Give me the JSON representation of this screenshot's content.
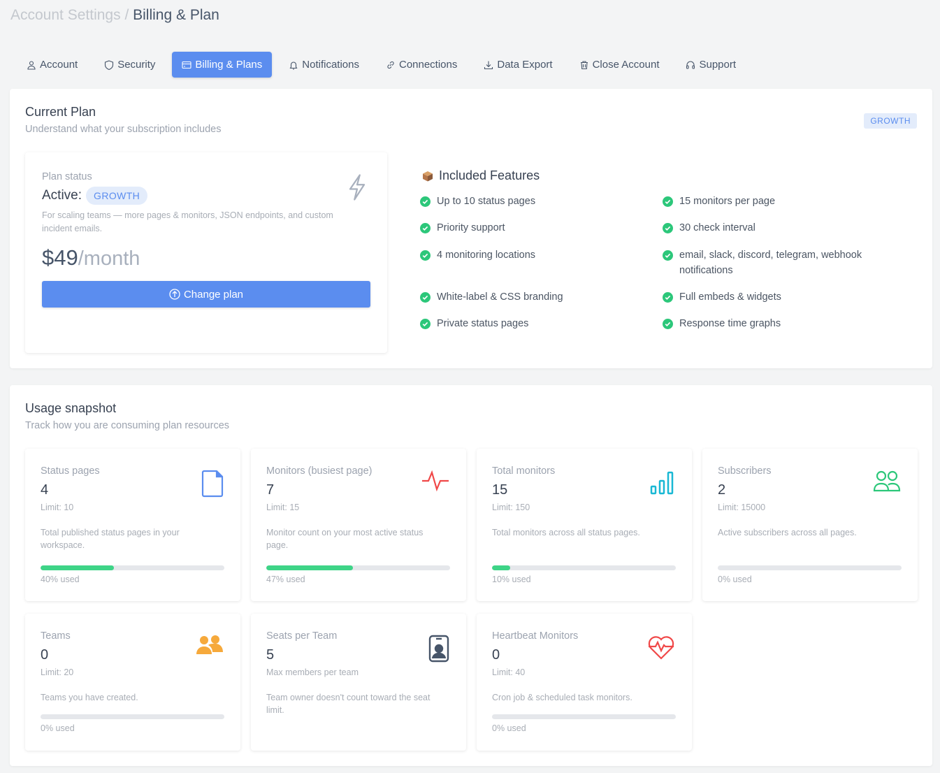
{
  "breadcrumb": {
    "parent": "Account Settings",
    "separator": "/",
    "current": "Billing & Plan"
  },
  "tabs": [
    {
      "label": "Account",
      "icon": "user-icon"
    },
    {
      "label": "Security",
      "icon": "shield-icon"
    },
    {
      "label": "Billing & Plans",
      "icon": "credit-card-icon",
      "active": true
    },
    {
      "label": "Notifications",
      "icon": "bell-icon"
    },
    {
      "label": "Connections",
      "icon": "link-icon"
    },
    {
      "label": "Data Export",
      "icon": "download-icon"
    },
    {
      "label": "Close Account",
      "icon": "trash-icon"
    },
    {
      "label": "Support",
      "icon": "headset-icon"
    }
  ],
  "current_plan": {
    "title": "Current Plan",
    "subtitle": "Understand what your subscription includes",
    "badge": "GROWTH",
    "status_label": "Plan status",
    "active_label": "Active:",
    "plan_name": "GROWTH",
    "description": "For scaling teams — more pages & monitors, JSON endpoints, and custom incident emails.",
    "price": "$49",
    "period": "/month",
    "change_button": "Change plan",
    "features_title": "Included Features",
    "features": [
      "Up to 10 status pages",
      "15 monitors per page",
      "Priority support",
      "30 check interval",
      "4 monitoring locations",
      "email, slack, discord, telegram, webhook notifications",
      "White-label & CSS branding",
      "Full embeds & widgets",
      "Private status pages",
      "Response time graphs"
    ]
  },
  "usage": {
    "title": "Usage snapshot",
    "subtitle": "Track how you are consuming plan resources",
    "cards": [
      {
        "title": "Status pages",
        "value": "4",
        "limit": "Limit: 10",
        "desc": "Total published status pages in your workspace.",
        "percent": 40,
        "used": "40% used",
        "icon": "file-icon",
        "color": "#5b8def"
      },
      {
        "title": "Monitors (busiest page)",
        "value": "7",
        "limit": "Limit: 15",
        "desc": "Monitor count on your most active status page.",
        "percent": 47,
        "used": "47% used",
        "icon": "activity-icon",
        "color": "#f04848"
      },
      {
        "title": "Total monitors",
        "value": "15",
        "limit": "Limit: 150",
        "desc": "Total monitors across all status pages.",
        "percent": 10,
        "used": "10% used",
        "icon": "bar-chart-icon",
        "color": "#19b8d4"
      },
      {
        "title": "Subscribers",
        "value": "2",
        "limit": "Limit: 15000",
        "desc": "Active subscribers across all pages.",
        "percent": 0,
        "used": "0% used",
        "icon": "users-icon",
        "color": "#2cc77a"
      },
      {
        "title": "Teams",
        "value": "0",
        "limit": "Limit: 20",
        "desc": "Teams you have created.",
        "percent": 0,
        "used": "0% used",
        "icon": "team-icon",
        "color": "#f6a93b"
      },
      {
        "title": "Seats per Team",
        "value": "5",
        "limit": "Max members per team",
        "desc": "Team owner doesn't count toward the seat limit.",
        "icon": "badge-icon",
        "color": "#475569"
      },
      {
        "title": "Heartbeat Monitors",
        "value": "0",
        "limit": "Limit: 40",
        "desc": "Cron job & scheduled task monitors.",
        "percent": 0,
        "used": "0% used",
        "icon": "heartbeat-icon",
        "color": "#f04848"
      }
    ]
  }
}
